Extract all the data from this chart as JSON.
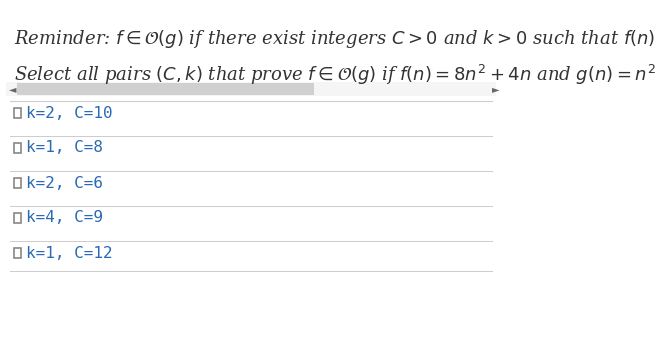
{
  "bg_color": "#f5f5f5",
  "white_bg": "#ffffff",
  "reminder_text": "Reminder: $f \\in \\mathcal{O}(g)$ if there exist integers $C > 0$ and $k > 0$ such that $f(n)$ :",
  "question_text": "Select all pairs $(C, k)$ that prove $f \\in \\mathcal{O}(g)$ if $f(n) = 8n^2 + 4n$ and $g(n) = n^2$",
  "options": [
    "k=2, C=10",
    "k=1, C=8",
    "k=2, C=6",
    "k=4, C=9",
    "k=1, C=12"
  ],
  "text_color": "#333333",
  "option_text_color": "#2a6ab5",
  "separator_color": "#cccccc",
  "scrollbar_bg": "#d0d0d0",
  "scrollbar_filled": "#a0a0a0",
  "reminder_fontsize": 13,
  "question_fontsize": 13,
  "option_fontsize": 11.5,
  "checkbox_color": "#888888",
  "scrollbar_arrow_color": "#666666"
}
